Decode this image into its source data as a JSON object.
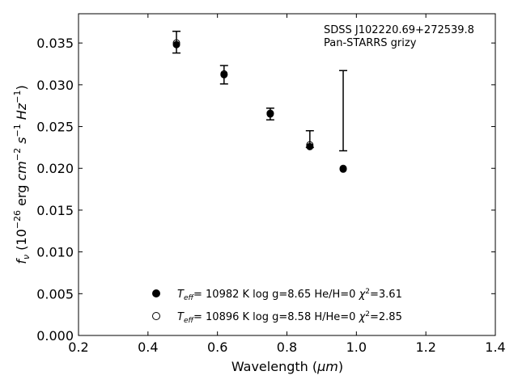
{
  "chart_data": {
    "type": "scatter",
    "title": "",
    "annotation": [
      "SDSS J102220.69+272539.8",
      "Pan-STARRS grizy"
    ],
    "xlabel_main": "Wavelength (",
    "xlabel_unit": "μm",
    "xlabel_close": ")",
    "ylabel_parts": {
      "f": "f",
      "nu": "ν",
      "open": " (10",
      "exp26": "−26",
      "erg": " erg ",
      "cm": "cm",
      "exp2": "−2",
      "s": " s",
      "exp1a": "−1",
      "hz": " Hz",
      "exp1b": "−1",
      "close": ")"
    },
    "xlim": [
      0.2,
      1.4
    ],
    "ylim": [
      0.0,
      0.0385
    ],
    "xticks": [
      "0.2",
      "0.4",
      "0.6",
      "0.8",
      "1.0",
      "1.2",
      "1.4"
    ],
    "yticks": [
      "0.000",
      "0.005",
      "0.010",
      "0.015",
      "0.020",
      "0.025",
      "0.030",
      "0.035"
    ],
    "grid": false,
    "observed": [
      {
        "x": 0.482,
        "y": 0.0351,
        "yerr": 0.0013
      },
      {
        "x": 0.619,
        "y": 0.0312,
        "yerr": 0.0011
      },
      {
        "x": 0.752,
        "y": 0.0265,
        "yerr": 0.0007
      },
      {
        "x": 0.866,
        "y": 0.0235,
        "yerr": 0.001
      },
      {
        "x": 0.962,
        "y": 0.0269,
        "yerr": 0.0048
      }
    ],
    "series": [
      {
        "name": "He/H=0",
        "marker": "filled",
        "legend": {
          "teff": "T",
          "sub": "eff",
          "rest": "= 10982 K  log g=8.65  He/H=0  ",
          "chi": "χ",
          "sup": "2",
          "val": "=3.61"
        },
        "x": [
          0.482,
          0.619,
          0.752,
          0.866,
          0.962
        ],
        "y": [
          0.0348,
          0.0312,
          0.0265,
          0.0226,
          0.0199
        ]
      },
      {
        "name": "H/He=0",
        "marker": "open",
        "legend": {
          "teff": "T",
          "sub": "eff",
          "rest": "= 10896 K  log g=8.58  H/He=0  ",
          "chi": "χ",
          "sup": "2",
          "val": "=2.85"
        },
        "x": [
          0.482,
          0.619,
          0.752,
          0.866,
          0.962
        ],
        "y": [
          0.035,
          0.0313,
          0.0266,
          0.0228,
          0.02
        ]
      }
    ],
    "colors": {
      "marker": "#000000",
      "axes": "#000000",
      "background": "#ffffff"
    }
  }
}
